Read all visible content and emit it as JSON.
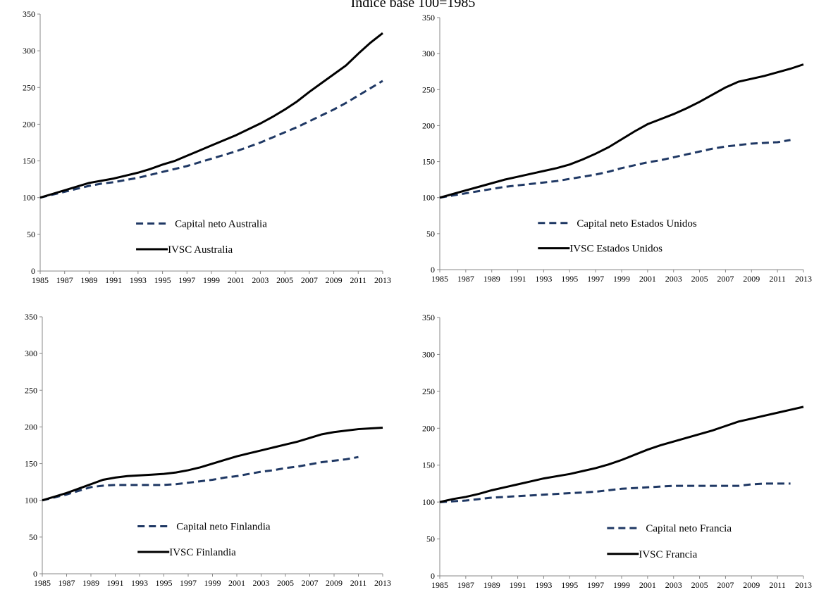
{
  "title": "Índice base 100=1985",
  "chart_data": [
    {
      "type": "line",
      "x": [
        1985,
        1986,
        1987,
        1988,
        1989,
        1990,
        1991,
        1992,
        1993,
        1994,
        1995,
        1996,
        1997,
        1998,
        1999,
        2000,
        2001,
        2002,
        2003,
        2004,
        2005,
        2006,
        2007,
        2008,
        2009,
        2010,
        2011,
        2012,
        2013
      ],
      "xlim": [
        1985,
        2013
      ],
      "xticks": [
        1985,
        1987,
        1989,
        1991,
        1993,
        1995,
        1997,
        1999,
        2001,
        2003,
        2005,
        2007,
        2009,
        2011,
        2013
      ],
      "ylim": [
        0,
        350
      ],
      "yticks": [
        0,
        50,
        100,
        150,
        200,
        250,
        300,
        350
      ],
      "series": [
        {
          "name": "Capital neto Australia",
          "color": "#1f3864",
          "dash": true,
          "values": [
            100,
            104,
            108,
            112,
            116,
            119,
            121,
            124,
            127,
            131,
            135,
            139,
            143,
            148,
            153,
            158,
            163,
            169,
            175,
            182,
            189,
            196,
            204,
            212,
            220,
            229,
            239,
            249,
            259
          ]
        },
        {
          "name": "IVSC Australia",
          "color": "#000000",
          "dash": false,
          "values": [
            100,
            105,
            110,
            115,
            120,
            123,
            126,
            130,
            134,
            139,
            145,
            150,
            157,
            164,
            171,
            178,
            185,
            193,
            201,
            210,
            220,
            231,
            244,
            256,
            268,
            280,
            296,
            311,
            324
          ]
        }
      ]
    },
    {
      "type": "line",
      "x": [
        1985,
        1986,
        1987,
        1988,
        1989,
        1990,
        1991,
        1992,
        1993,
        1994,
        1995,
        1996,
        1997,
        1998,
        1999,
        2000,
        2001,
        2002,
        2003,
        2004,
        2005,
        2006,
        2007,
        2008,
        2009,
        2010,
        2011,
        2012,
        2013
      ],
      "xlim": [
        1985,
        2013
      ],
      "xticks": [
        1985,
        1987,
        1989,
        1991,
        1993,
        1995,
        1997,
        1999,
        2001,
        2003,
        2005,
        2007,
        2009,
        2011,
        2013
      ],
      "ylim": [
        0,
        350
      ],
      "yticks": [
        0,
        50,
        100,
        150,
        200,
        250,
        300,
        350
      ],
      "series": [
        {
          "name": "Capital neto Estados Unidos",
          "color": "#1f3864",
          "dash": true,
          "values": [
            100,
            103,
            106,
            109,
            112,
            115,
            117,
            119,
            121,
            123,
            126,
            129,
            132,
            136,
            141,
            145,
            149,
            152,
            156,
            160,
            164,
            168,
            171,
            173,
            175,
            176,
            177,
            180,
            null
          ]
        },
        {
          "name": "IVSC Estados Unidos",
          "color": "#000000",
          "dash": false,
          "values": [
            100,
            105,
            110,
            115,
            120,
            125,
            129,
            133,
            137,
            141,
            146,
            153,
            161,
            170,
            181,
            192,
            202,
            209,
            216,
            224,
            233,
            243,
            253,
            261,
            265,
            269,
            274,
            279,
            285
          ]
        }
      ]
    },
    {
      "type": "line",
      "x": [
        1985,
        1986,
        1987,
        1988,
        1989,
        1990,
        1991,
        1992,
        1993,
        1994,
        1995,
        1996,
        1997,
        1998,
        1999,
        2000,
        2001,
        2002,
        2003,
        2004,
        2005,
        2006,
        2007,
        2008,
        2009,
        2010,
        2011,
        2012,
        2013
      ],
      "xlim": [
        1985,
        2013
      ],
      "xticks": [
        1985,
        1987,
        1989,
        1991,
        1993,
        1995,
        1997,
        1999,
        2001,
        2003,
        2005,
        2007,
        2009,
        2011,
        2013
      ],
      "ylim": [
        0,
        350
      ],
      "yticks": [
        0,
        50,
        100,
        150,
        200,
        250,
        300,
        350
      ],
      "series": [
        {
          "name": "Capital neto Finlandia",
          "color": "#1f3864",
          "dash": true,
          "values": [
            100,
            104,
            108,
            113,
            118,
            120,
            121,
            121,
            121,
            121,
            121,
            122,
            124,
            126,
            128,
            131,
            133,
            136,
            139,
            141,
            144,
            146,
            149,
            152,
            154,
            156,
            159,
            null,
            null
          ]
        },
        {
          "name": "IVSC Finlandia",
          "color": "#000000",
          "dash": false,
          "values": [
            100,
            105,
            110,
            116,
            122,
            128,
            131,
            133,
            134,
            135,
            136,
            138,
            141,
            145,
            150,
            155,
            160,
            164,
            168,
            172,
            176,
            180,
            185,
            190,
            193,
            195,
            197,
            198,
            199
          ]
        }
      ]
    },
    {
      "type": "line",
      "x": [
        1985,
        1986,
        1987,
        1988,
        1989,
        1990,
        1991,
        1992,
        1993,
        1994,
        1995,
        1996,
        1997,
        1998,
        1999,
        2000,
        2001,
        2002,
        2003,
        2004,
        2005,
        2006,
        2007,
        2008,
        2009,
        2010,
        2011,
        2012,
        2013
      ],
      "xlim": [
        1985,
        2013
      ],
      "xticks": [
        1985,
        1987,
        1989,
        1991,
        1993,
        1995,
        1997,
        1999,
        2001,
        2003,
        2005,
        2007,
        2009,
        2011,
        2013
      ],
      "ylim": [
        0,
        350
      ],
      "yticks": [
        0,
        50,
        100,
        150,
        200,
        250,
        300,
        350
      ],
      "series": [
        {
          "name": "Capital neto Francia",
          "color": "#1f3864",
          "dash": true,
          "values": [
            100,
            101,
            102,
            104,
            106,
            107,
            108,
            109,
            110,
            111,
            112,
            113,
            114,
            116,
            118,
            119,
            120,
            121,
            122,
            122,
            122,
            122,
            122,
            122,
            124,
            125,
            125,
            125,
            null
          ]
        },
        {
          "name": "IVSC Francia",
          "color": "#000000",
          "dash": false,
          "values": [
            100,
            104,
            107,
            111,
            116,
            120,
            124,
            128,
            132,
            135,
            138,
            142,
            146,
            151,
            157,
            164,
            171,
            177,
            182,
            187,
            192,
            197,
            203,
            209,
            213,
            217,
            221,
            225,
            229
          ]
        }
      ]
    }
  ]
}
